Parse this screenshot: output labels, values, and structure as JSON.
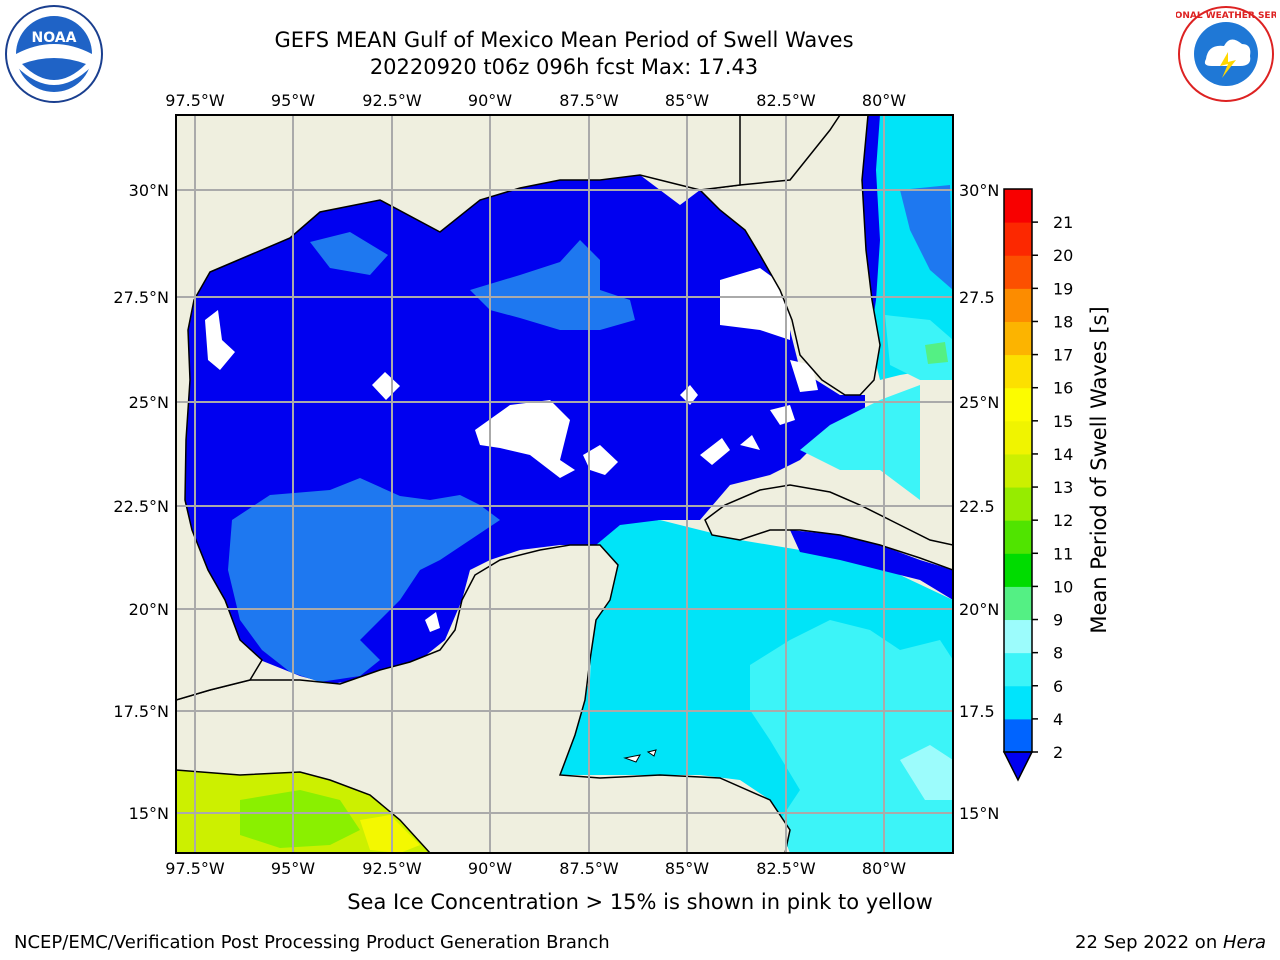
{
  "title": {
    "line1": "GEFS MEAN Gulf of Mexico Mean Period of Swell Waves",
    "line2": "20220920 t06z 096h fcst   Max: 17.43"
  },
  "logos": {
    "left": "noaa-logo",
    "right": "national-weather-service-logo",
    "left_text": "NOAA",
    "right_text": "NATIONAL WEATHER SERVICE"
  },
  "map": {
    "lon_labels": [
      "97.5°W",
      "95°W",
      "92.5°W",
      "90°W",
      "87.5°W",
      "85°W",
      "82.5°W",
      "80°W"
    ],
    "lat_labels_left": [
      "30°N",
      "27.5°N",
      "25°N",
      "22.5°N",
      "20°N",
      "17.5°N",
      "15°N"
    ],
    "lat_labels_right": [
      "30°N",
      "27.5",
      "25°N",
      "22.5",
      "20°N",
      "17.5",
      "15°N"
    ],
    "colors": {
      "land": "#efefdf",
      "lt2": "#0000f0",
      "c2_4": "#1e78f0",
      "c4_6": "#00e4f8",
      "c6_8": "#3cf4f8",
      "c8_9": "#9cfcfc",
      "c12": "#8af000",
      "c13": "#ccf000",
      "c14": "#f4f800"
    }
  },
  "colorbar": {
    "label": "Mean Period of Swell Waves [s]",
    "ticks": [
      "2",
      "4",
      "6",
      "8",
      "9",
      "10",
      "11",
      "12",
      "13",
      "14",
      "15",
      "16",
      "17",
      "18",
      "19",
      "20",
      "21"
    ],
    "colors": [
      "#0064ff",
      "#00e4fc",
      "#3cf4f8",
      "#9cfcfc",
      "#54f084",
      "#00dc00",
      "#50e400",
      "#96ec00",
      "#ccf000",
      "#f0f400",
      "#fcfc00",
      "#fce000",
      "#fcb400",
      "#fc8c00",
      "#fc5000",
      "#fc2800",
      "#f80000"
    ],
    "extend_color": "#0000f0"
  },
  "footer": {
    "ice_note": "Sea Ice Concentration > 15% is shown in pink to yellow",
    "credit_left": "NCEP/EMC/Verification Post Processing Product Generation Branch",
    "credit_date": "22 Sep 2022 on ",
    "credit_host": "Hera"
  }
}
